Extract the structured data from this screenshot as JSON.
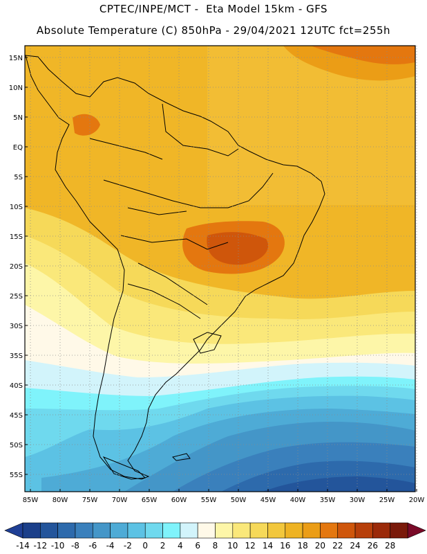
{
  "header": {
    "line1": "CPTEC/INPE/MCT -  Eta Model 15km - GFS",
    "line2": "Absolute Temperature (C) 850hPa - 29/04/2021 12UTC fct=255h"
  },
  "map": {
    "region": "South America",
    "lat_labels": [
      "15N",
      "10N",
      "5N",
      "EQ",
      "5S",
      "10S",
      "15S",
      "20S",
      "25S",
      "30S",
      "35S",
      "40S",
      "45S",
      "50S",
      "55S"
    ],
    "lon_labels": [
      "85W",
      "80W",
      "75W",
      "70W",
      "65W",
      "60W",
      "55W",
      "50W",
      "45W",
      "40W",
      "35W",
      "30W",
      "25W",
      "20W"
    ]
  },
  "colorbar": {
    "labels": [
      "-14",
      "-12",
      "-10",
      "-8",
      "-6",
      "-4",
      "-2",
      "0",
      "2",
      "4",
      "6",
      "8",
      "10",
      "12",
      "14",
      "16",
      "18",
      "20",
      "22",
      "24",
      "26",
      "28"
    ],
    "colors": [
      "#1b3f8a",
      "#23559b",
      "#2d6aac",
      "#3a80bc",
      "#4496c8",
      "#4eabd6",
      "#5cc2e4",
      "#6fd9ee",
      "#7ff3fb",
      "#d2f4fb",
      "#fff9e8",
      "#fdf6a8",
      "#fae87a",
      "#f6d959",
      "#f2c73c",
      "#eeb323",
      "#eb9d16",
      "#e4770f",
      "#cf560b",
      "#b73f0a",
      "#9b2a09",
      "#7a1a0a"
    ],
    "low_arrow": "#1f3f95",
    "high_arrow": "#7a0a28"
  }
}
